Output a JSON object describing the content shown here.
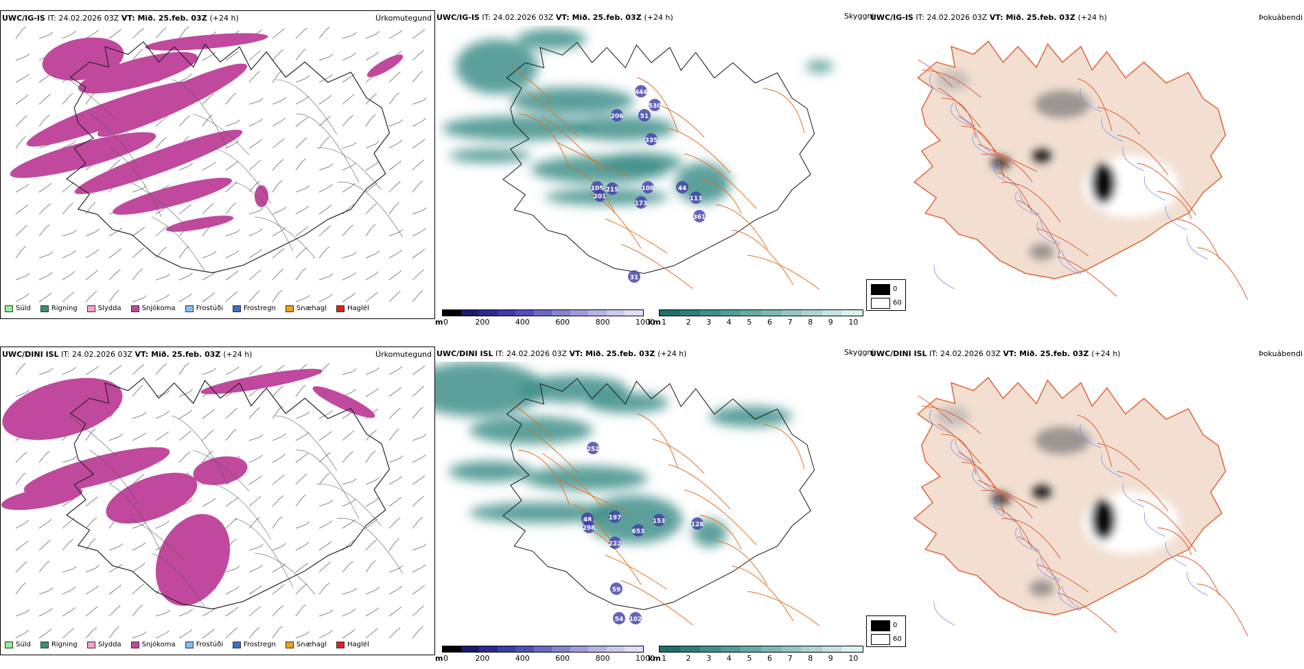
{
  "rows": [
    {
      "model": "UWC/IG-IS",
      "it": "IT: 24.02.2026 03Z",
      "vt_label": "VT:",
      "vt_value": "Mið. 25.feb. 03Z",
      "lead": "(+24 h)",
      "labels": [
        {
          "text": "444"
        },
        {
          "text": "530"
        },
        {
          "text": "206"
        },
        {
          "text": "51"
        },
        {
          "text": "335"
        },
        {
          "text": "105"
        },
        {
          "text": "215"
        },
        {
          "text": "108"
        },
        {
          "text": "201"
        },
        {
          "text": "173"
        },
        {
          "text": "113"
        },
        {
          "text": "361"
        },
        {
          "text": "44"
        },
        {
          "text": "31"
        }
      ]
    },
    {
      "model": "UWC/DINI ISL",
      "it": "IT: 24.02.2026 03Z",
      "vt_label": "VT:",
      "vt_value": "Mið. 25.feb. 03Z",
      "lead": "(+24 h)",
      "labels": [
        {
          "text": "252"
        },
        {
          "text": "48"
        },
        {
          "text": "197"
        },
        {
          "text": "153"
        },
        {
          "text": "298"
        },
        {
          "text": "653"
        },
        {
          "text": "128"
        },
        {
          "text": "222"
        },
        {
          "text": "59"
        },
        {
          "text": "54"
        },
        {
          "text": "102"
        }
      ]
    }
  ],
  "panel_titles": {
    "precip_type": "Úrkomutegund",
    "cloud": "Skyggni",
    "fog": "Þokuábendi"
  },
  "precip_legend": [
    {
      "label": "Súld",
      "color": "#90ee90"
    },
    {
      "label": "Rigning",
      "color": "#3c8f6e"
    },
    {
      "label": "Slydda",
      "color": "#f4a0d0"
    },
    {
      "label": "Snjókoma",
      "color": "#c0499e"
    },
    {
      "label": "Frostúði",
      "color": "#8fb8f0"
    },
    {
      "label": "Frostregn",
      "color": "#3a6fc8"
    },
    {
      "label": "Snæhagl",
      "color": "#f0a020"
    },
    {
      "label": "Haglél",
      "color": "#e02020"
    }
  ],
  "cloud_base_bar": {
    "unit": "m",
    "ticks": [
      "0",
      "200",
      "400",
      "600",
      "800",
      "1000"
    ],
    "colors": [
      "#000000",
      "#1a1a6e",
      "#2b2b8f",
      "#3d3da8",
      "#5050b8",
      "#6a6ac4",
      "#8484d0",
      "#9c9cdc",
      "#b4b4e6",
      "#cacaef",
      "#dedef6"
    ]
  },
  "visibility_bar": {
    "unit": "km",
    "ticks": [
      "1",
      "2",
      "3",
      "4",
      "5",
      "6",
      "7",
      "8",
      "9",
      "10"
    ],
    "colors": [
      "#1f6f6a",
      "#2e7f79",
      "#3e8f89",
      "#529d97",
      "#67aba5",
      "#7db9b4",
      "#94c7c2",
      "#acd5d1",
      "#c4e3e0",
      "#ddf0ee"
    ]
  },
  "fog_legend": [
    {
      "label": "0",
      "color": "#000000"
    },
    {
      "label": "60",
      "color": "#ffffff"
    }
  ],
  "colors": {
    "snow": "#c0499e",
    "teal": "#3e8f89",
    "roads": "#e07020",
    "land": "#f2dfd2",
    "fog_roads": "#e05a2a",
    "rivers": "#7b8ef0"
  }
}
